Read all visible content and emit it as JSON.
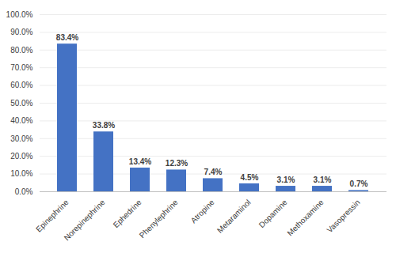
{
  "chart_data": {
    "type": "bar",
    "categories": [
      "Epinephrine",
      "Norepinephrine",
      "Ephedrine",
      "Phenylephrine",
      "Atropine",
      "Metaraminol",
      "Dopamine",
      "Methoxamine",
      "Vasopressin"
    ],
    "values": [
      83.4,
      33.8,
      13.4,
      12.3,
      7.4,
      4.5,
      3.1,
      3.1,
      0.7
    ],
    "value_labels": [
      "83.4%",
      "33.8%",
      "13.4%",
      "12.3%",
      "7.4%",
      "4.5%",
      "3.1%",
      "3.1%",
      "0.7%"
    ],
    "color": "#4472c4",
    "ylim": [
      0,
      100
    ],
    "yticks": [
      {
        "value": 0,
        "label": "0.0%"
      },
      {
        "value": 10,
        "label": "10.0%"
      },
      {
        "value": 20,
        "label": "20.0%"
      },
      {
        "value": 30,
        "label": "30.0%"
      },
      {
        "value": 40,
        "label": "40.0%"
      },
      {
        "value": 50,
        "label": "50.0%"
      },
      {
        "value": 60,
        "label": "60.0%"
      },
      {
        "value": 70,
        "label": "70.0%"
      },
      {
        "value": 80,
        "label": "80.0%"
      },
      {
        "value": 90,
        "label": "90.0%"
      },
      {
        "value": 100,
        "label": "100.0%"
      }
    ],
    "grid": true,
    "data_labels": true
  }
}
